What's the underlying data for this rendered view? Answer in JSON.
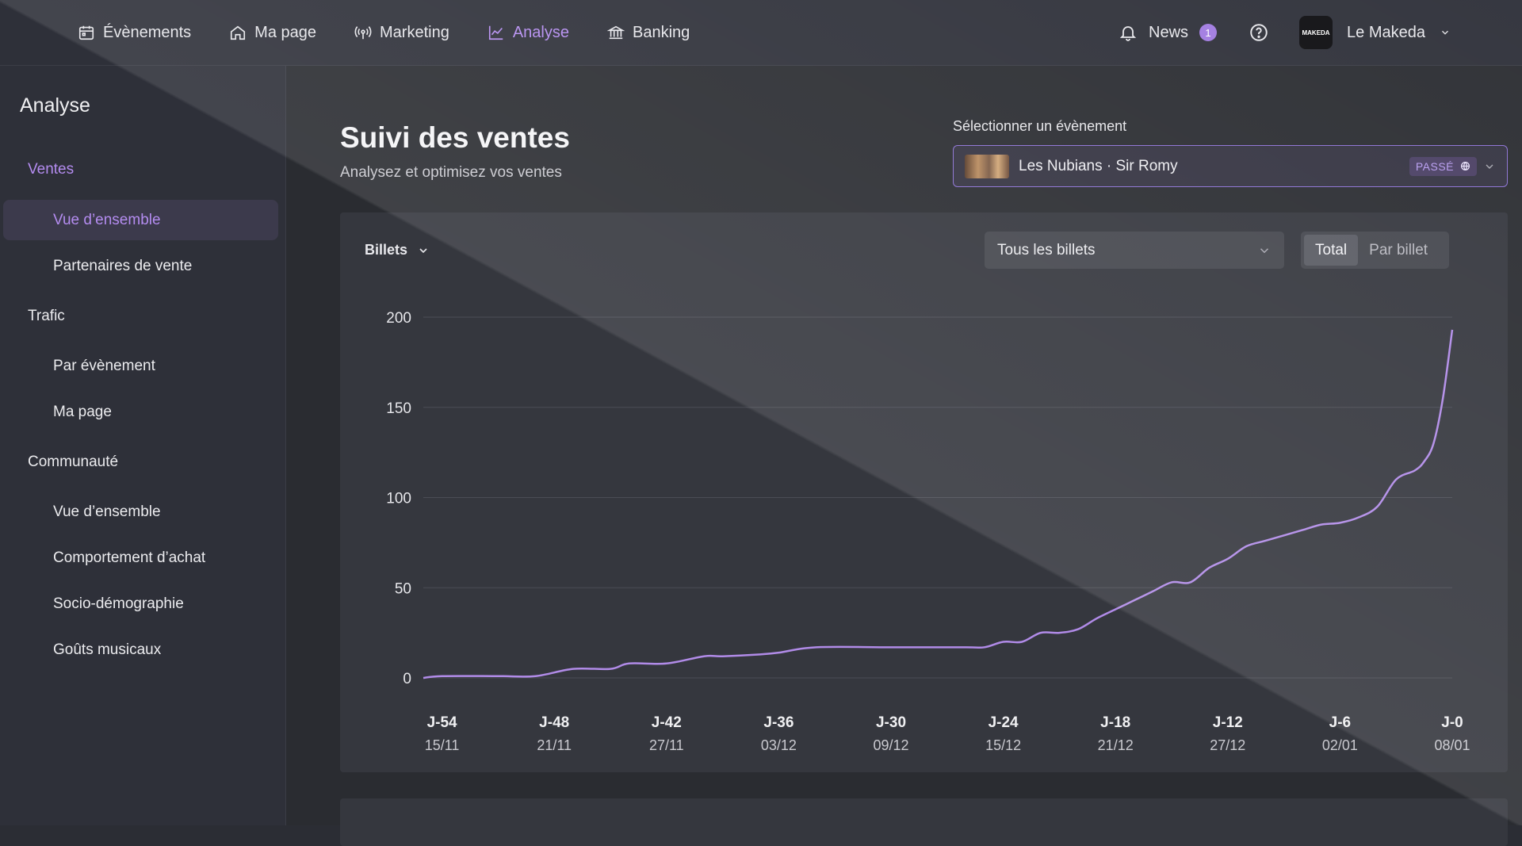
{
  "nav": {
    "items": [
      {
        "label": "Évènements",
        "icon": "calendar-icon"
      },
      {
        "label": "Ma page",
        "icon": "home-icon"
      },
      {
        "label": "Marketing",
        "icon": "broadcast-icon"
      },
      {
        "label": "Analyse",
        "icon": "chart-line-icon",
        "active": true
      },
      {
        "label": "Banking",
        "icon": "bank-icon"
      }
    ],
    "news_label": "News",
    "news_count": "1",
    "account_name": "Le Makeda",
    "avatar_text": "MAKEDA"
  },
  "sidebar": {
    "title": "Analyse",
    "sections": {
      "ventes": "Ventes",
      "ventes_overview": "Vue d’ensemble",
      "ventes_partners": "Partenaires de vente",
      "trafic": "Trafic",
      "trafic_event": "Par évènement",
      "trafic_page": "Ma page",
      "communaute": "Communauté",
      "comm_overview": "Vue d’ensemble",
      "comm_behavior": "Comportement d’achat",
      "comm_socio": "Socio-démographie",
      "comm_music": "Goûts musicaux"
    }
  },
  "header": {
    "title": "Suivi des ventes",
    "subtitle": "Analysez et optimisez vos ventes",
    "select_label": "Sélectionner un évènement",
    "event_name": "Les Nubians · Sir Romy",
    "event_status": "PASSÉ"
  },
  "chart_controls": {
    "metric": "Billets",
    "ticket_filter": "Tous les billets",
    "toggle_total": "Total",
    "toggle_per_ticket": "Par billet"
  },
  "colors": {
    "accent": "#b48cf0",
    "line": "#b18be8"
  },
  "chart_data": {
    "type": "line",
    "ylim": [
      0,
      200
    ],
    "yticks": [
      0,
      50,
      100,
      150,
      200
    ],
    "xlim": [
      -55,
      0
    ],
    "xticks": [
      {
        "day": -54,
        "label": "J-54",
        "date": "15/11"
      },
      {
        "day": -48,
        "label": "J-48",
        "date": "21/11"
      },
      {
        "day": -42,
        "label": "J-42",
        "date": "27/11"
      },
      {
        "day": -36,
        "label": "J-36",
        "date": "03/12"
      },
      {
        "day": -30,
        "label": "J-30",
        "date": "09/12"
      },
      {
        "day": -24,
        "label": "J-24",
        "date": "15/12"
      },
      {
        "day": -18,
        "label": "J-18",
        "date": "21/12"
      },
      {
        "day": -12,
        "label": "J-12",
        "date": "27/12"
      },
      {
        "day": -6,
        "label": "J-6",
        "date": "02/01"
      },
      {
        "day": 0,
        "label": "J-0",
        "date": "08/01"
      }
    ],
    "x": [
      -55,
      -54,
      -51,
      -49,
      -47,
      -45,
      -44,
      -42,
      -40,
      -39,
      -37,
      -36,
      -34,
      -30,
      -26,
      -25,
      -24,
      -23,
      -22,
      -21,
      -20,
      -19,
      -18,
      -17,
      -16,
      -15,
      -14,
      -13,
      -12,
      -11,
      -10,
      -9,
      -8,
      -7,
      -6,
      -5,
      -4,
      -3,
      -2,
      -1.5,
      -1,
      -0.5,
      0
    ],
    "series": [
      {
        "values": [
          0,
          1,
          1,
          1,
          5,
          5,
          8,
          8,
          12,
          12,
          13,
          14,
          17,
          17,
          17,
          17,
          20,
          20,
          25,
          25,
          27,
          33,
          38,
          43,
          48,
          53,
          53,
          61,
          66,
          73,
          76,
          79,
          82,
          85,
          86,
          89,
          95,
          110,
          115,
          120,
          130,
          155,
          193
        ]
      }
    ]
  }
}
